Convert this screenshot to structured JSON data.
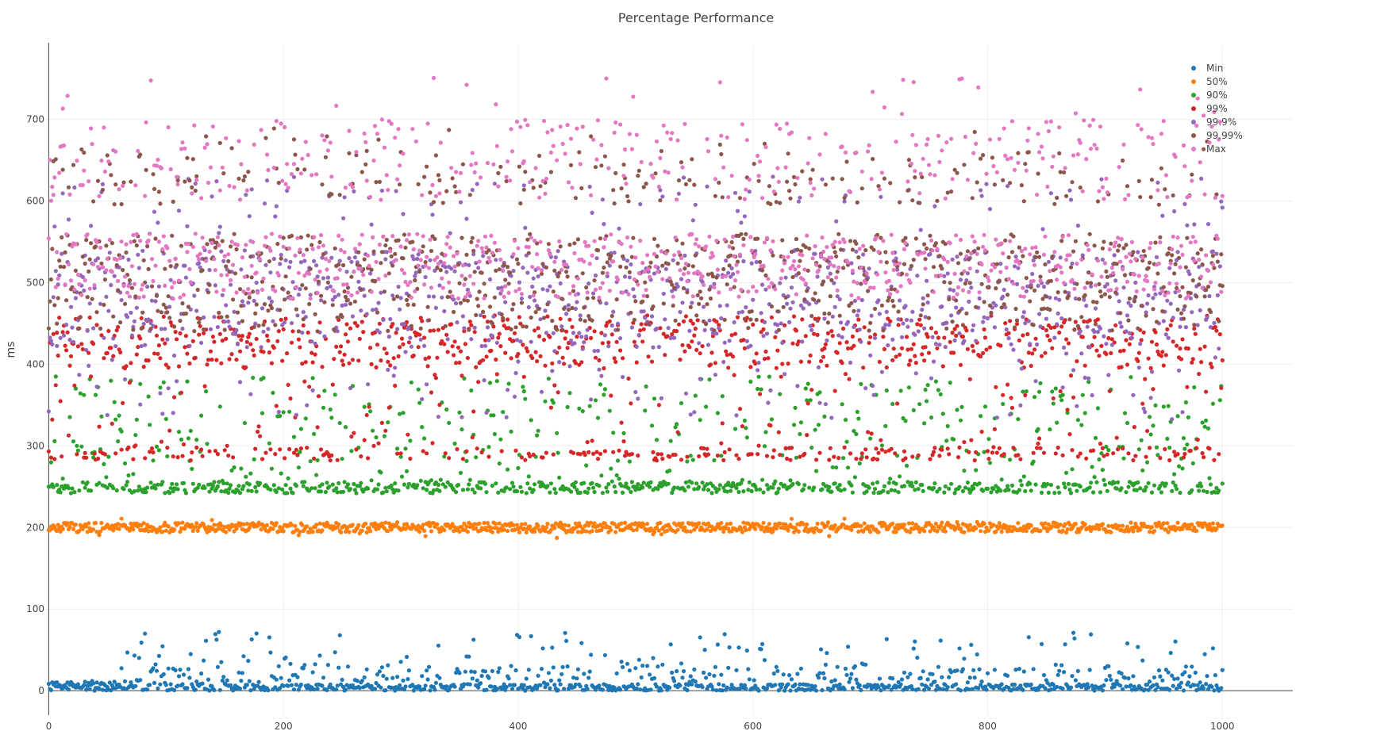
{
  "chart_data": {
    "type": "scatter",
    "title": "Percentage Performance",
    "xlabel": "",
    "ylabel": "ms",
    "xlim": [
      -5,
      1060
    ],
    "ylim": [
      -30,
      790
    ],
    "xticks": [
      0,
      200,
      400,
      600,
      800,
      1000
    ],
    "yticks": [
      0,
      100,
      200,
      300,
      400,
      500,
      600,
      700
    ],
    "grid": true,
    "legend_position": "top-right",
    "n_points_per_series": 1000,
    "series": [
      {
        "name": "Min",
        "color": "#1f77b4",
        "distribution": "0–70 ms, most points between 0 and 30 ms",
        "typical_range": [
          0,
          70
        ],
        "sample_points": [
          [
            0,
            6
          ],
          [
            80,
            10
          ],
          [
            160,
            20
          ],
          [
            225,
            67
          ],
          [
            310,
            40
          ],
          [
            415,
            72
          ],
          [
            510,
            68
          ],
          [
            635,
            70
          ],
          [
            760,
            30
          ],
          [
            900,
            64
          ],
          [
            1000,
            63
          ]
        ]
      },
      {
        "name": "50%",
        "color": "#ff7f0e",
        "distribution": "tight band around 205 ms",
        "typical_range": [
          196,
          216
        ],
        "sample_points": [
          [
            0,
            210
          ],
          [
            100,
            205
          ],
          [
            300,
            206
          ],
          [
            580,
            212
          ],
          [
            800,
            204
          ],
          [
            1000,
            203
          ]
        ]
      },
      {
        "name": "90%",
        "color": "#2ca02c",
        "distribution": "dense band near 248 ms, scattered up to ~385 ms",
        "typical_range": [
          240,
          385
        ],
        "sample_points": [
          [
            0,
            355
          ],
          [
            0,
            270
          ],
          [
            50,
            248
          ],
          [
            200,
            380
          ],
          [
            400,
            250
          ],
          [
            600,
            248
          ],
          [
            800,
            320
          ],
          [
            1000,
            246
          ]
        ]
      },
      {
        "name": "99%",
        "color": "#d62728",
        "distribution": "band at ~290 ms and broad band 390–460 ms",
        "typical_range": [
          280,
          460
        ],
        "sample_points": [
          [
            0,
            440
          ],
          [
            0,
            288
          ],
          [
            150,
            430
          ],
          [
            400,
            420
          ],
          [
            600,
            290
          ],
          [
            800,
            430
          ],
          [
            1000,
            430
          ]
        ]
      },
      {
        "name": "99.9%",
        "color": "#9467bd",
        "distribution": "mostly 420–540 ms, some 560–630 ms",
        "typical_range": [
          330,
          630
        ],
        "sample_points": [
          [
            0,
            500
          ],
          [
            200,
            480
          ],
          [
            400,
            470
          ],
          [
            600,
            610
          ],
          [
            800,
            470
          ],
          [
            1000,
            472
          ]
        ]
      },
      {
        "name": "99.99%",
        "color": "#8c564b",
        "distribution": "mostly 460–560 ms, clusters near 600–650 ms",
        "typical_range": [
          440,
          690
        ],
        "sample_points": [
          [
            0,
            605
          ],
          [
            150,
            615
          ],
          [
            300,
            500
          ],
          [
            440,
            620
          ],
          [
            610,
            690
          ],
          [
            800,
            610
          ],
          [
            1000,
            605
          ]
        ]
      },
      {
        "name": "Max",
        "color": "#e377c2",
        "distribution": "mostly 480–560 ms and 600–700 ms, peaks near 750 ms",
        "typical_range": [
          470,
          750
        ],
        "sample_points": [
          [
            0,
            625
          ],
          [
            150,
            697
          ],
          [
            285,
            700
          ],
          [
            400,
            750
          ],
          [
            555,
            748
          ],
          [
            800,
            707
          ],
          [
            1000,
            608
          ]
        ]
      }
    ]
  }
}
